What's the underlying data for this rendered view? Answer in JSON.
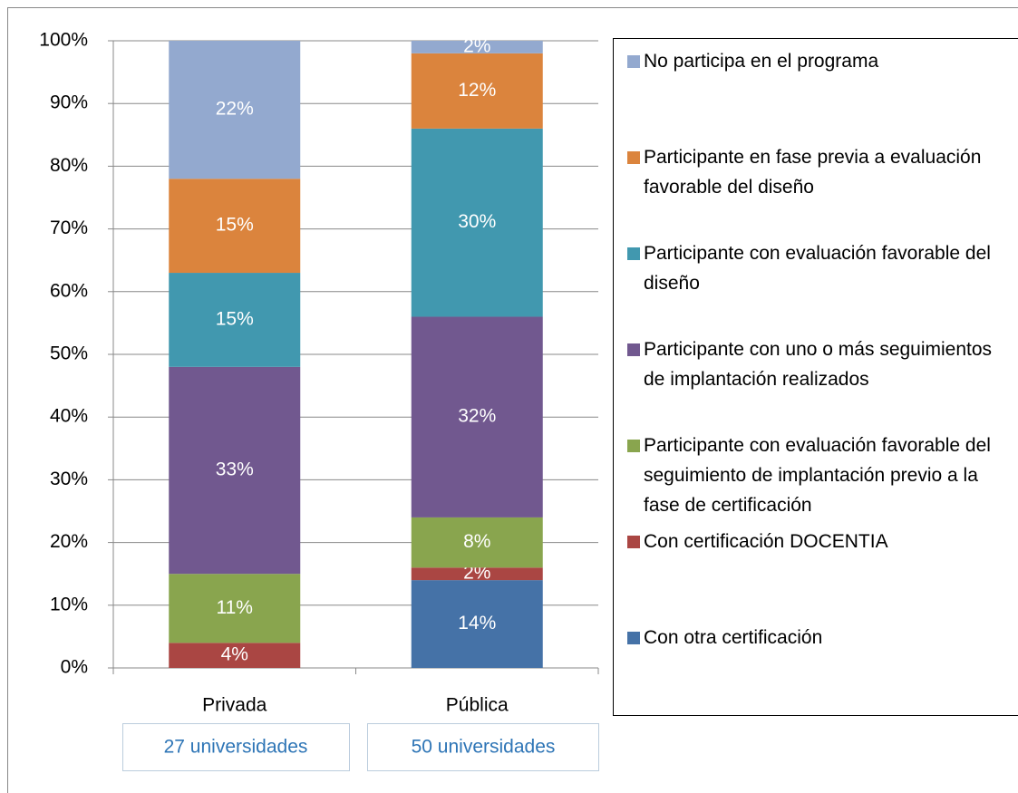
{
  "chart_data": {
    "type": "stacked_bar",
    "categories": [
      "Privada",
      "Pública"
    ],
    "category_notes": [
      "27 universidades",
      "50 universidades"
    ],
    "series": [
      {
        "name": "Con otra certificación",
        "color": "#4572a7",
        "values": [
          null,
          14
        ],
        "value_labels": [
          null,
          "14%"
        ]
      },
      {
        "name": "Con certificación DOCENTIA",
        "color": "#aa4643",
        "values": [
          4,
          2
        ],
        "value_labels": [
          "4%",
          "2%"
        ]
      },
      {
        "name": "Participante con evaluación favorable del seguimiento de implantación previo a la fase de certificación",
        "color": "#89a54e",
        "values": [
          11,
          8
        ],
        "value_labels": [
          "11%",
          "8%"
        ]
      },
      {
        "name": "Participante con uno o más seguimientos de implantación realizados",
        "color": "#71588f",
        "values": [
          33,
          32
        ],
        "value_labels": [
          "33%",
          "32%"
        ]
      },
      {
        "name": "Participante con evaluación favorable del diseño",
        "color": "#4198af",
        "values": [
          15,
          30
        ],
        "value_labels": [
          "15%",
          "30%"
        ]
      },
      {
        "name": "Participante en fase previa a evaluación favorable del diseño",
        "color": "#db843d",
        "values": [
          15,
          12
        ],
        "value_labels": [
          "15%",
          "12%"
        ]
      },
      {
        "name": "No participa en el programa",
        "color": "#93a9cf",
        "values": [
          22,
          2
        ],
        "value_labels": [
          "22%",
          "2%"
        ]
      }
    ],
    "ylim": [
      0,
      100
    ],
    "yticks": [
      {
        "value": 0,
        "label": "0%"
      },
      {
        "value": 10,
        "label": "10%"
      },
      {
        "value": 20,
        "label": "20%"
      },
      {
        "value": 30,
        "label": "30%"
      },
      {
        "value": 40,
        "label": "40%"
      },
      {
        "value": 50,
        "label": "50%"
      },
      {
        "value": 60,
        "label": "60%"
      },
      {
        "value": 70,
        "label": "70%"
      },
      {
        "value": 80,
        "label": "80%"
      },
      {
        "value": 90,
        "label": "90%"
      },
      {
        "value": 100,
        "label": "100%"
      }
    ],
    "grid": true,
    "legend": "right"
  }
}
